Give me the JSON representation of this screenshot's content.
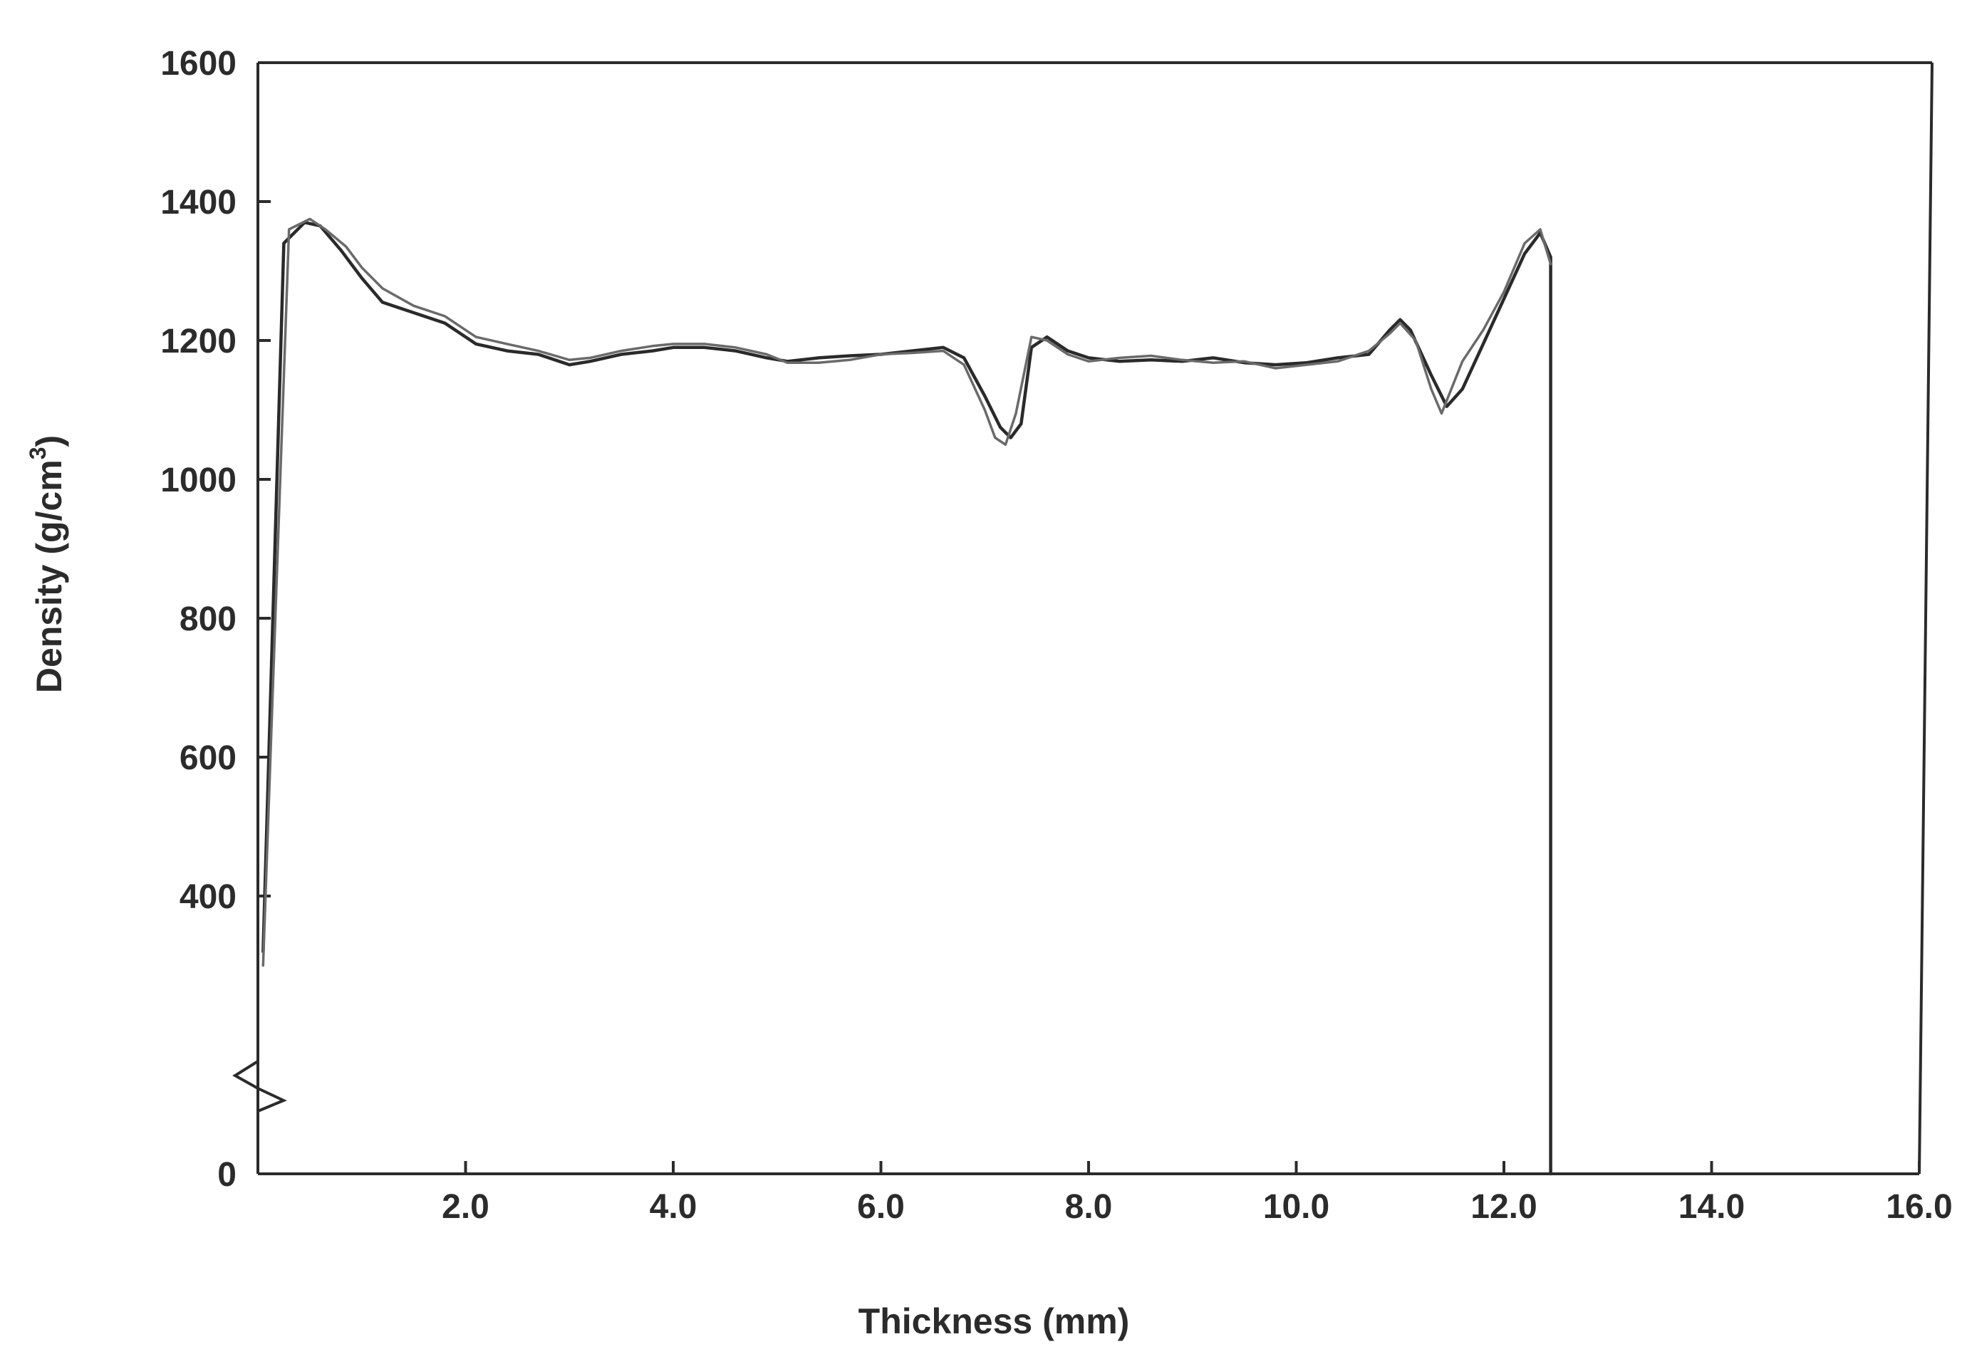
{
  "chart_data": {
    "type": "line",
    "xlabel": "Thickness (mm)",
    "ylabel_main": "Density (g/cm",
    "ylabel_sup": "3",
    "ylabel_close": ")",
    "xlim": [
      0.0,
      16.0
    ],
    "ylim": [
      0,
      1600
    ],
    "x_ticks": [
      {
        "value": 2.0,
        "label": "2.0"
      },
      {
        "value": 4.0,
        "label": "4.0"
      },
      {
        "value": 6.0,
        "label": "6.0"
      },
      {
        "value": 8.0,
        "label": "8.0"
      },
      {
        "value": 10.0,
        "label": "10.0"
      },
      {
        "value": 12.0,
        "label": "12.0"
      },
      {
        "value": 14.0,
        "label": "14.0"
      },
      {
        "value": 16.0,
        "label": "16.0"
      }
    ],
    "y_ticks": [
      {
        "value": 0,
        "label": "0"
      },
      {
        "value": 400,
        "label": "400"
      },
      {
        "value": 600,
        "label": "600"
      },
      {
        "value": 800,
        "label": "800"
      },
      {
        "value": 1000,
        "label": "1000"
      },
      {
        "value": 1200,
        "label": "1200"
      },
      {
        "value": 1400,
        "label": "1400"
      },
      {
        "value": 1600,
        "label": "1600"
      }
    ],
    "y_axis_break": true,
    "grid": false,
    "legend": "none",
    "series": [
      {
        "color": "#2a2a2a",
        "x": [
          0.05,
          0.25,
          0.45,
          0.6,
          0.8,
          1.0,
          1.2,
          1.5,
          1.8,
          2.1,
          2.4,
          2.7,
          3.0,
          3.2,
          3.5,
          3.8,
          4.0,
          4.3,
          4.6,
          4.9,
          5.1,
          5.4,
          5.7,
          6.0,
          6.3,
          6.6,
          6.8,
          7.0,
          7.15,
          7.25,
          7.35,
          7.45,
          7.6,
          7.8,
          8.0,
          8.3,
          8.6,
          8.9,
          9.2,
          9.5,
          9.8,
          10.1,
          10.4,
          10.7,
          10.9,
          11.0,
          11.1,
          11.3,
          11.45,
          11.6,
          11.8,
          12.0,
          12.2,
          12.35,
          12.45,
          12.45
        ],
        "y": [
          320,
          1340,
          1370,
          1365,
          1330,
          1290,
          1255,
          1240,
          1225,
          1195,
          1185,
          1180,
          1165,
          1170,
          1180,
          1185,
          1190,
          1190,
          1185,
          1175,
          1170,
          1175,
          1178,
          1180,
          1185,
          1190,
          1175,
          1120,
          1075,
          1060,
          1080,
          1190,
          1205,
          1185,
          1175,
          1170,
          1172,
          1170,
          1175,
          1168,
          1165,
          1168,
          1175,
          1180,
          1215,
          1230,
          1215,
          1150,
          1105,
          1130,
          1195,
          1260,
          1325,
          1355,
          1320,
          0
        ]
      },
      {
        "color": "#6a6a6a",
        "x": [
          0.05,
          0.3,
          0.5,
          0.65,
          0.85,
          1.0,
          1.2,
          1.5,
          1.8,
          2.1,
          2.4,
          2.7,
          3.0,
          3.2,
          3.5,
          3.8,
          4.0,
          4.3,
          4.6,
          4.9,
          5.1,
          5.4,
          5.7,
          6.0,
          6.3,
          6.6,
          6.8,
          7.0,
          7.1,
          7.2,
          7.3,
          7.45,
          7.6,
          7.8,
          8.0,
          8.3,
          8.6,
          8.9,
          9.2,
          9.5,
          9.8,
          10.1,
          10.4,
          10.7,
          10.9,
          11.0,
          11.15,
          11.3,
          11.4,
          11.6,
          11.8,
          12.0,
          12.2,
          12.35,
          12.45
        ],
        "y": [
          300,
          1360,
          1375,
          1360,
          1335,
          1305,
          1275,
          1250,
          1235,
          1205,
          1195,
          1185,
          1172,
          1175,
          1185,
          1192,
          1195,
          1195,
          1190,
          1180,
          1168,
          1168,
          1172,
          1180,
          1182,
          1185,
          1165,
          1100,
          1060,
          1050,
          1095,
          1205,
          1200,
          1180,
          1170,
          1175,
          1178,
          1172,
          1168,
          1170,
          1160,
          1165,
          1170,
          1185,
          1210,
          1225,
          1200,
          1130,
          1095,
          1170,
          1215,
          1270,
          1340,
          1360,
          1310
        ]
      }
    ]
  }
}
